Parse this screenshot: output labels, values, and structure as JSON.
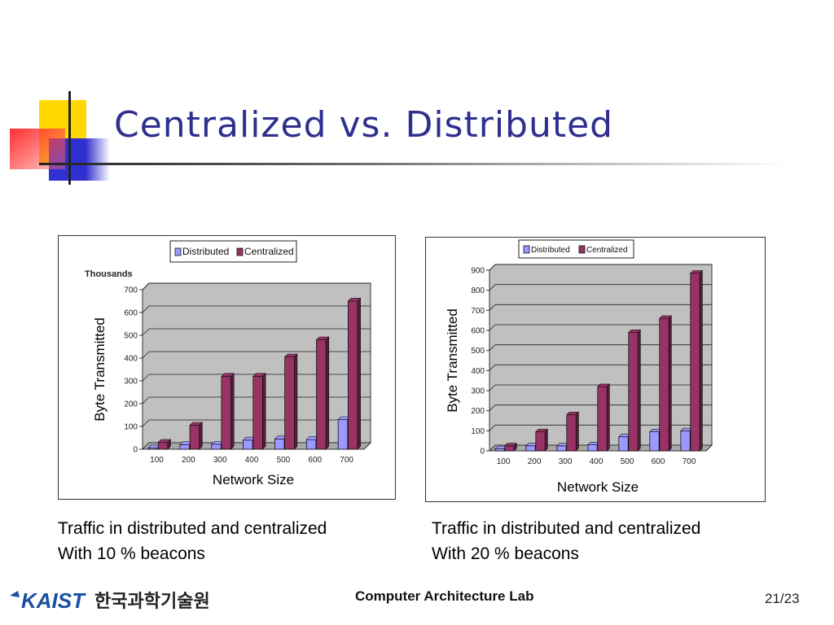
{
  "slide": {
    "title": "Centralized vs. Distributed",
    "footer_lab": "Computer Architecture Lab",
    "page_number": "21/23",
    "logo_text": "KAIST",
    "logo_korean": "한국과학기술원"
  },
  "captions": [
    {
      "line1": "Traffic in distributed and centralized",
      "line2": "With 10 % beacons"
    },
    {
      "line1": "Traffic in distributed and centralized",
      "line2": "With 20 % beacons"
    }
  ],
  "colors": {
    "distributed": "#9999ff",
    "centralized": "#993366",
    "plot_bg": "#c0c0c0",
    "title": "#2f2f8f"
  },
  "chart_data": [
    {
      "type": "bar",
      "title": "",
      "unit_label": "Thousands",
      "xlabel": "Network Size",
      "ylabel": "Byte Transmitted",
      "categories": [
        "100",
        "200",
        "300",
        "400",
        "500",
        "600",
        "700"
      ],
      "series": [
        {
          "name": "Distributed",
          "values": [
            5,
            20,
            22,
            40,
            45,
            42,
            130
          ]
        },
        {
          "name": "Centralized",
          "values": [
            30,
            105,
            320,
            320,
            405,
            480,
            650
          ]
        }
      ],
      "ylim": [
        0,
        700
      ],
      "yticks": [
        0,
        100,
        200,
        300,
        400,
        500,
        600,
        700
      ],
      "grid": true,
      "legend": "top-center"
    },
    {
      "type": "bar",
      "title": "",
      "xlabel": "Network Size",
      "ylabel": "Byte Transmitted",
      "categories": [
        "100",
        "200",
        "300",
        "400",
        "500",
        "600",
        "700"
      ],
      "series": [
        {
          "name": "Distributed",
          "values": [
            10,
            25,
            25,
            30,
            70,
            95,
            100
          ]
        },
        {
          "name": "Centralized",
          "values": [
            25,
            95,
            180,
            320,
            590,
            660,
            885
          ]
        }
      ],
      "ylim": [
        0,
        900
      ],
      "yticks": [
        0,
        100,
        200,
        300,
        400,
        500,
        600,
        700,
        800,
        900
      ],
      "grid": true,
      "legend": "top-center"
    }
  ]
}
